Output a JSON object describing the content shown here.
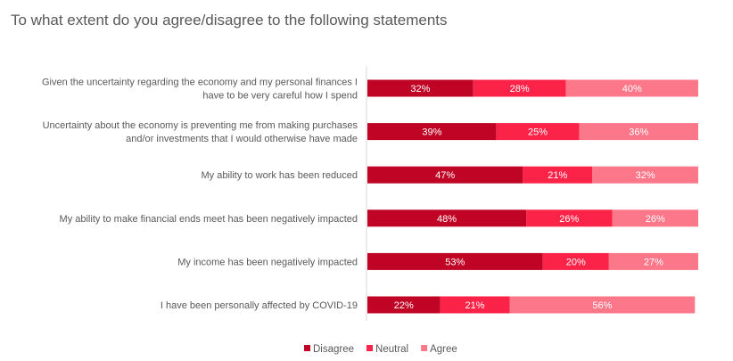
{
  "chart_data": {
    "type": "bar",
    "orientation": "horizontal",
    "stacked": true,
    "title": "To what extent do you agree/disagree to the following statements",
    "categories": [
      [
        "Given the uncertainty regarding the economy and my personal finances I",
        "have to be very careful how I spend"
      ],
      [
        "Uncertainty about the economy is preventing me from making purchases",
        "and/or investments that I would otherwise have made"
      ],
      [
        "My ability to work has been reduced"
      ],
      [
        "My ability to make financial ends meet has been negatively impacted"
      ],
      [
        "My income has been negatively impacted"
      ],
      [
        "I have been personally affected by COVID-19"
      ]
    ],
    "series": [
      {
        "name": "Disagree",
        "color": "#C00425",
        "values": [
          32,
          39,
          47,
          48,
          53,
          22
        ]
      },
      {
        "name": "Neutral",
        "color": "#FB2347",
        "values": [
          28,
          25,
          21,
          26,
          20,
          21
        ]
      },
      {
        "name": "Agree",
        "color": "#FC778A",
        "values": [
          40,
          36,
          32,
          26,
          27,
          56
        ]
      }
    ],
    "xlim": [
      0,
      100
    ],
    "value_suffix": "%",
    "legend_position": "bottom",
    "grid": false
  }
}
